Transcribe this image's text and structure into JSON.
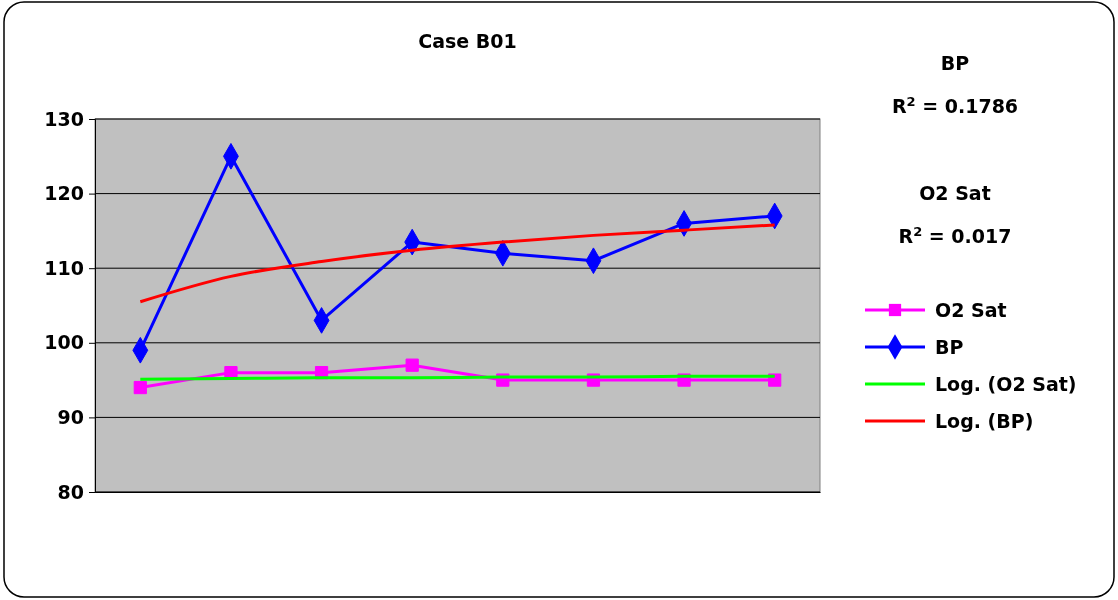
{
  "chart_data": {
    "type": "line",
    "title": "Case B01",
    "categories": [
      null,
      null,
      null,
      null,
      null,
      null,
      null,
      null
    ],
    "series": [
      {
        "name": "O2 Sat",
        "color": "#ff00ff",
        "marker": "square",
        "values": [
          94,
          96,
          96,
          97,
          95,
          95,
          95,
          95
        ]
      },
      {
        "name": "BP",
        "color": "#0000ff",
        "marker": "diamond",
        "values": [
          99,
          125,
          103,
          113.5,
          112,
          111,
          116,
          117
        ]
      },
      {
        "name": "Log. (O2 Sat)",
        "color": "#00ff00",
        "marker": "none",
        "values": [
          95.1,
          95.2,
          95.3,
          95.3,
          95.4,
          95.4,
          95.5,
          95.5
        ]
      },
      {
        "name": "Log. (BP)",
        "color": "#ff0000",
        "marker": "none",
        "values": [
          105.5,
          108.9,
          110.9,
          112.4,
          113.5,
          114.4,
          115.1,
          115.8
        ]
      }
    ],
    "ylim": [
      80,
      130
    ],
    "yticks": [
      80,
      90,
      100,
      110,
      120,
      130
    ],
    "grid": "y",
    "legend": "right",
    "tick_labels": "y",
    "annotations": [
      "BP",
      "R$^{2}$ = 0.1786",
      "O2 Sat",
      "R$^{2}$ = 0.017"
    ]
  }
}
